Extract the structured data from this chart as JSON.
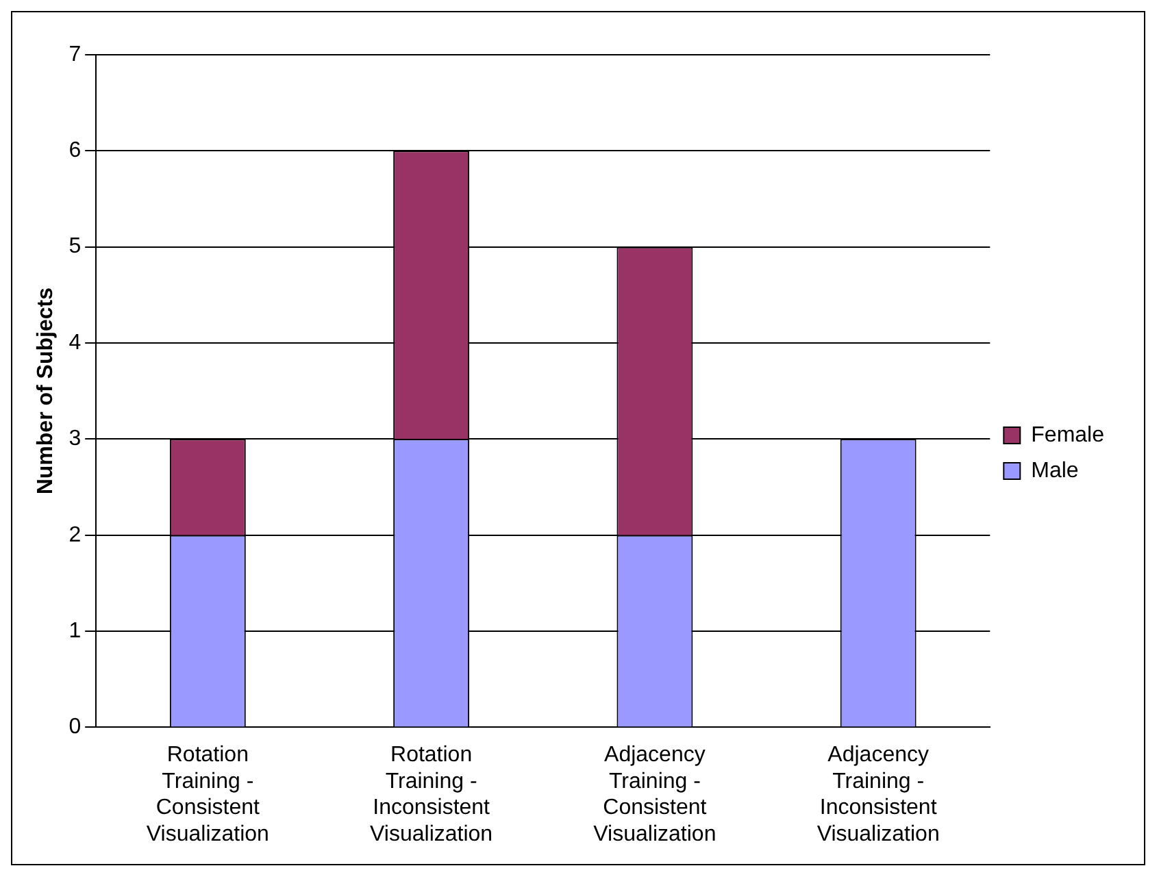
{
  "chart_data": {
    "type": "bar",
    "stacked": true,
    "ylabel": "Number of Subjects",
    "categories": [
      "Rotation Training - Consistent Visualization",
      "Rotation Training - Inconsistent Visualization",
      "Adjacency Training - Consistent Visualization",
      "Adjacency Training - Inconsistent Visualization"
    ],
    "series": [
      {
        "name": "Male",
        "color": "#9999ff",
        "values": [
          2,
          3,
          2,
          3
        ]
      },
      {
        "name": "Female",
        "color": "#993366",
        "values": [
          1,
          3,
          3,
          0
        ]
      }
    ],
    "ylim": [
      0,
      7
    ],
    "yticks": [
      0,
      1,
      2,
      3,
      4,
      5,
      6,
      7
    ],
    "grid": "y",
    "legend": "right"
  }
}
